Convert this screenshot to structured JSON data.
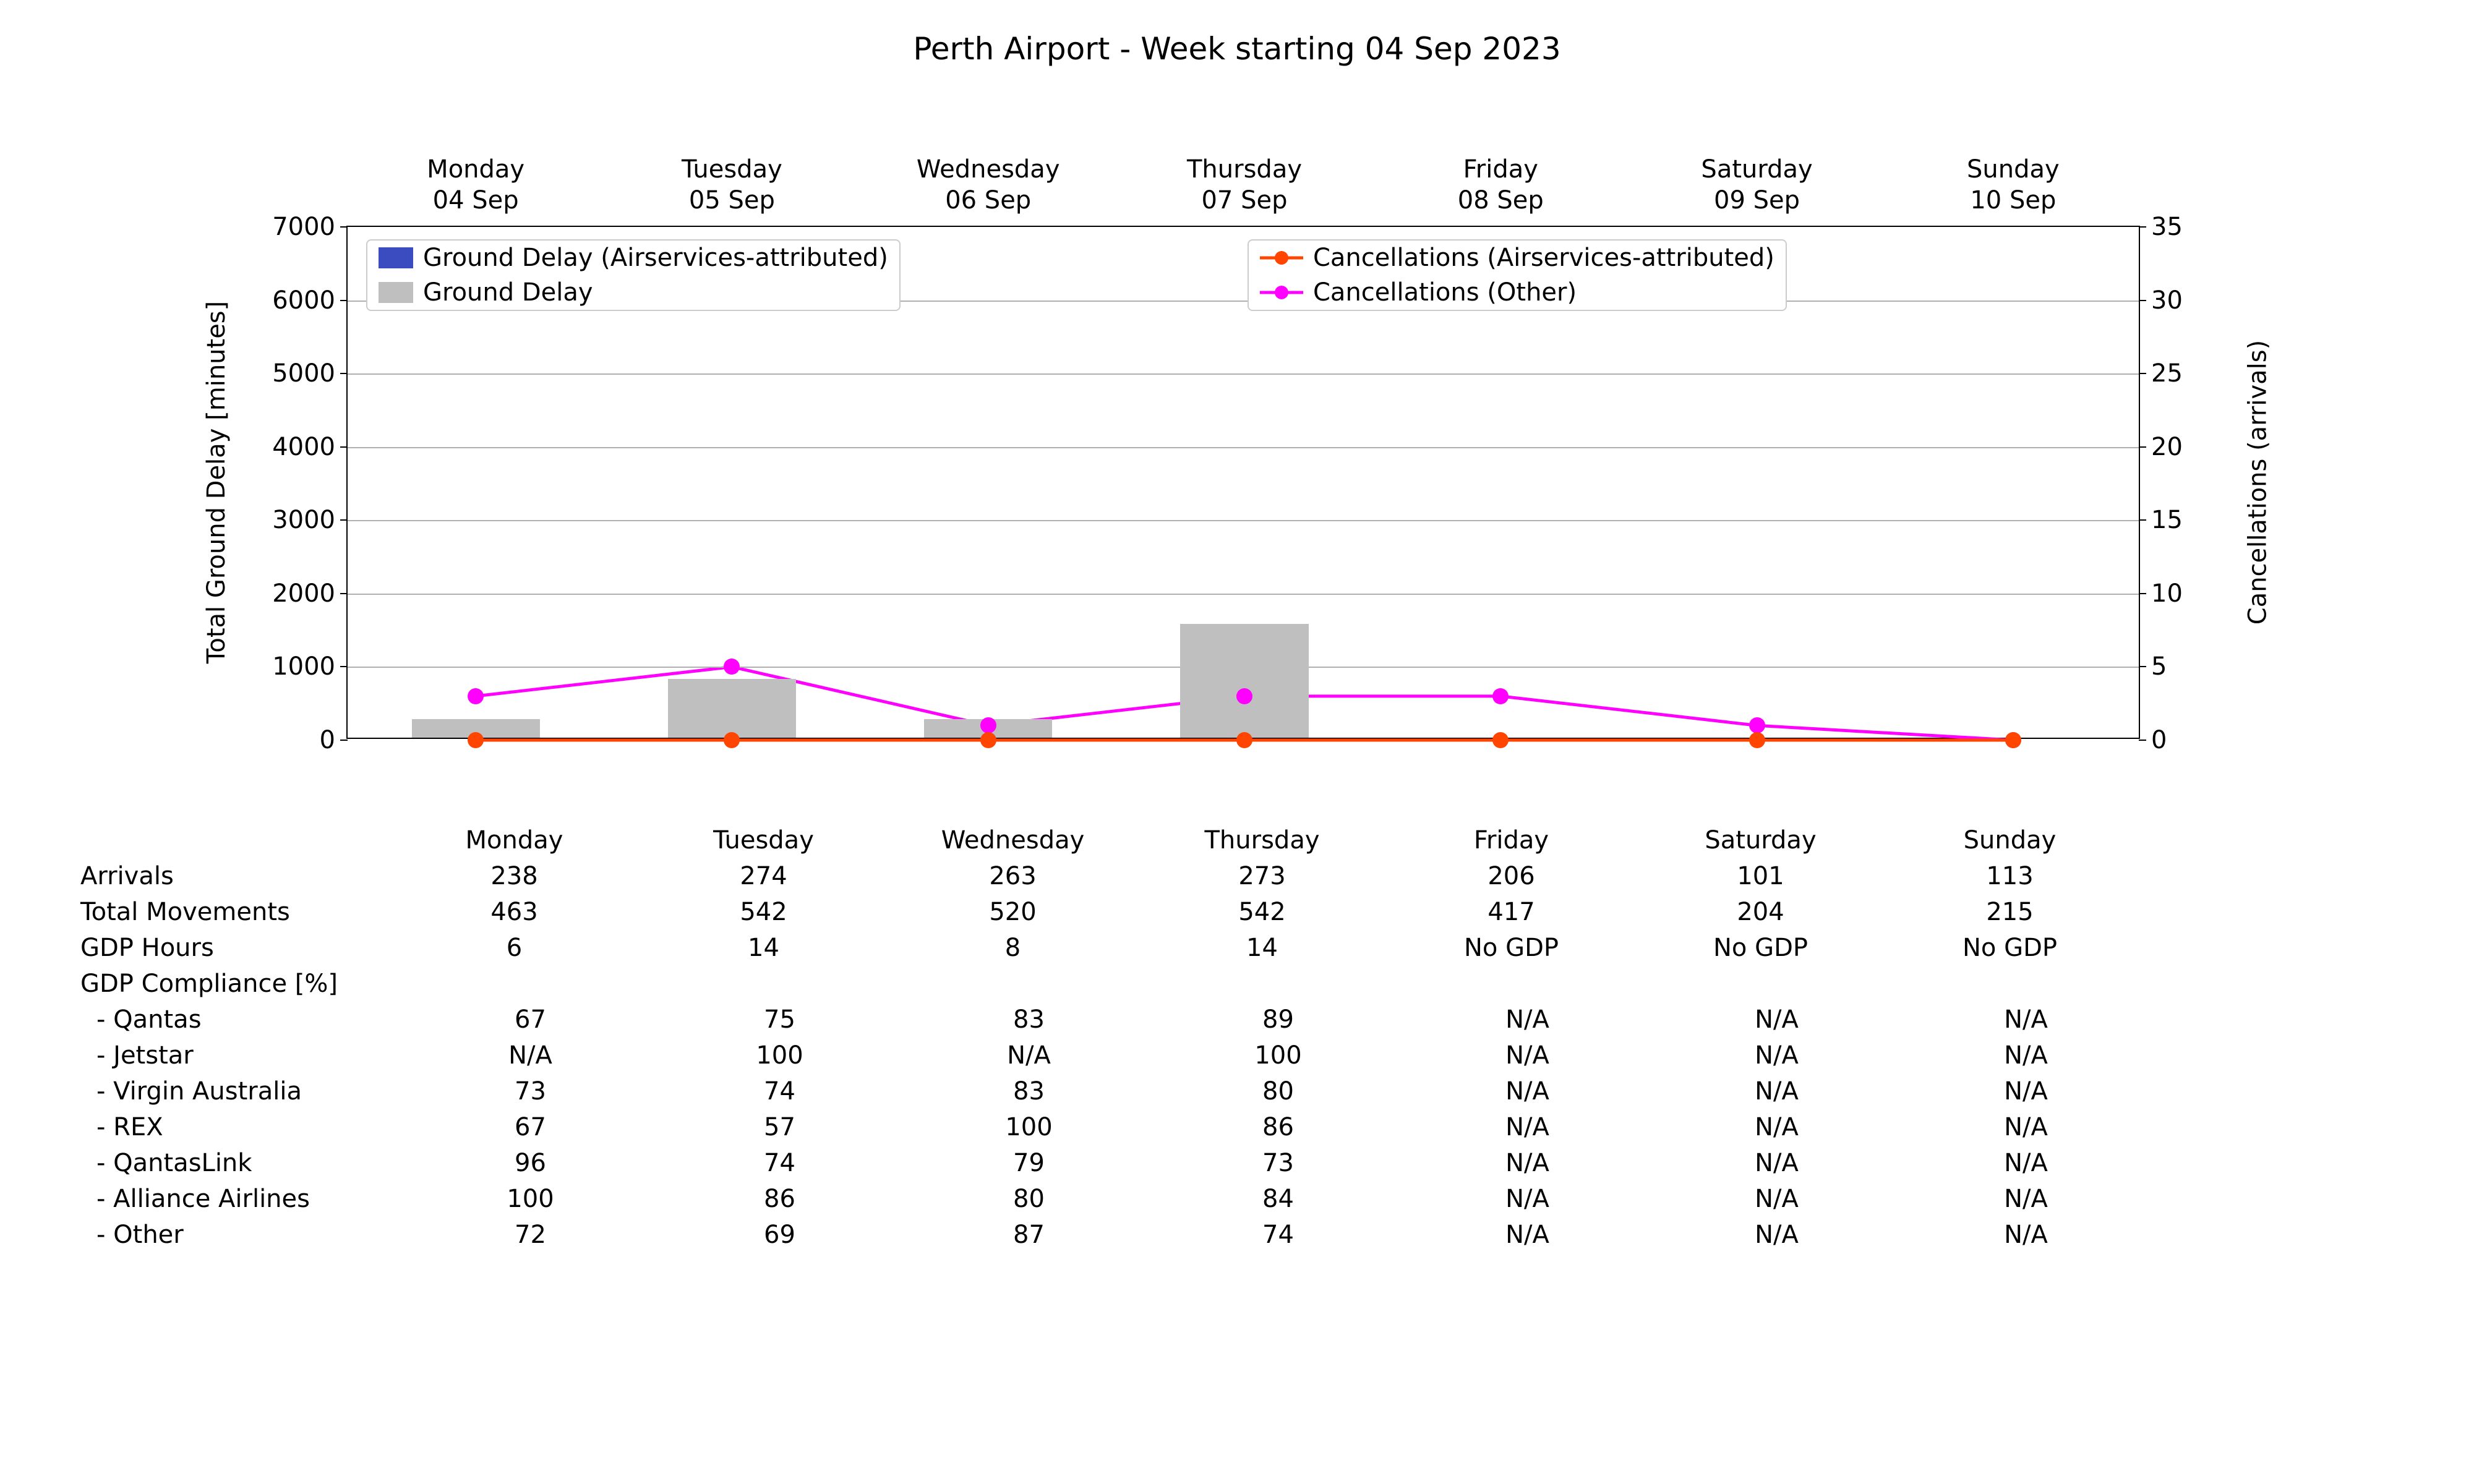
{
  "title": "Perth Airport - Week starting 04 Sep 2023",
  "background_color": "#ffffff",
  "text_color": "#000000",
  "grid_color": "#b0b0b0",
  "fontsize_title": 50,
  "fontsize_axis": 40,
  "fontsize_tick": 40,
  "fontsize_table": 40,
  "chart": {
    "type": "bar_and_line_dual_axis",
    "categories_line1": [
      "Monday",
      "Tuesday",
      "Wednesday",
      "Thursday",
      "Friday",
      "Saturday",
      "Sunday"
    ],
    "categories_line2": [
      "04 Sep",
      "05 Sep",
      "06 Sep",
      "07 Sep",
      "08 Sep",
      "09 Sep",
      "10 Sep"
    ],
    "y_left": {
      "label": "Total Ground Delay [minutes]",
      "min": 0,
      "max": 7000,
      "tick_step": 1000,
      "ticks": [
        0,
        1000,
        2000,
        3000,
        4000,
        5000,
        6000,
        7000
      ]
    },
    "y_right": {
      "label": "Cancellations (arrivals)",
      "min": 0,
      "max": 35,
      "tick_step": 5,
      "ticks": [
        0,
        5,
        10,
        15,
        20,
        25,
        30,
        35
      ]
    },
    "bars": {
      "ground_delay": {
        "label": "Ground Delay",
        "color": "#bfbfbf",
        "values": [
          250,
          800,
          250,
          1550,
          0,
          0,
          0
        ],
        "bar_width": 0.5
      },
      "ground_delay_airservices": {
        "label": "Ground Delay (Airservices-attributed)",
        "color": "#3b4cc0",
        "values": [
          0,
          0,
          0,
          0,
          0,
          0,
          0
        ],
        "bar_width": 0.5
      }
    },
    "lines": {
      "cancel_airservices": {
        "label": "Cancellations (Airservices-attributed)",
        "color": "#ff4500",
        "marker": "circle",
        "line_width": 5,
        "marker_size": 26,
        "values": [
          0,
          0,
          0,
          0,
          0,
          0,
          0
        ]
      },
      "cancel_other": {
        "label": "Cancellations (Other)",
        "color": "#ff00ff",
        "marker": "circle",
        "line_width": 5,
        "marker_size": 26,
        "values": [
          3,
          5,
          1,
          3,
          3,
          1,
          0
        ]
      }
    },
    "legend_left": [
      {
        "kind": "swatch",
        "color": "#3b4cc0",
        "label": "Ground Delay (Airservices-attributed)"
      },
      {
        "kind": "swatch",
        "color": "#bfbfbf",
        "label": "Ground Delay"
      }
    ],
    "legend_right": [
      {
        "kind": "line",
        "color": "#ff4500",
        "label": "Cancellations (Airservices-attributed)"
      },
      {
        "kind": "line",
        "color": "#ff00ff",
        "label": "Cancellations (Other)"
      }
    ]
  },
  "table": {
    "header": [
      "Monday",
      "Tuesday",
      "Wednesday",
      "Thursday",
      "Friday",
      "Saturday",
      "Sunday"
    ],
    "rows": [
      {
        "label": "Arrivals",
        "indent": false,
        "cells": [
          "238",
          "274",
          "263",
          "273",
          "206",
          "101",
          "113"
        ]
      },
      {
        "label": "Total Movements",
        "indent": false,
        "cells": [
          "463",
          "542",
          "520",
          "542",
          "417",
          "204",
          "215"
        ]
      },
      {
        "label": "GDP Hours",
        "indent": false,
        "cells": [
          "6",
          "14",
          "8",
          "14",
          "No GDP",
          "No GDP",
          "No GDP"
        ]
      },
      {
        "label": "GDP Compliance [%]",
        "indent": false,
        "cells": [
          "",
          "",
          "",
          "",
          "",
          "",
          ""
        ]
      },
      {
        "label": " - Qantas",
        "indent": true,
        "cells": [
          "67",
          "75",
          "83",
          "89",
          "N/A",
          "N/A",
          "N/A"
        ]
      },
      {
        "label": " - Jetstar",
        "indent": true,
        "cells": [
          "N/A",
          "100",
          "N/A",
          "100",
          "N/A",
          "N/A",
          "N/A"
        ]
      },
      {
        "label": " - Virgin Australia",
        "indent": true,
        "cells": [
          "73",
          "74",
          "83",
          "80",
          "N/A",
          "N/A",
          "N/A"
        ]
      },
      {
        "label": " - REX",
        "indent": true,
        "cells": [
          "67",
          "57",
          "100",
          "86",
          "N/A",
          "N/A",
          "N/A"
        ]
      },
      {
        "label": " - QantasLink",
        "indent": true,
        "cells": [
          "96",
          "74",
          "79",
          "73",
          "N/A",
          "N/A",
          "N/A"
        ]
      },
      {
        "label": " - Alliance Airlines",
        "indent": true,
        "cells": [
          "100",
          "86",
          "80",
          "84",
          "N/A",
          "N/A",
          "N/A"
        ]
      },
      {
        "label": " - Other",
        "indent": true,
        "cells": [
          "72",
          "69",
          "87",
          "74",
          "N/A",
          "N/A",
          "N/A"
        ]
      }
    ]
  }
}
